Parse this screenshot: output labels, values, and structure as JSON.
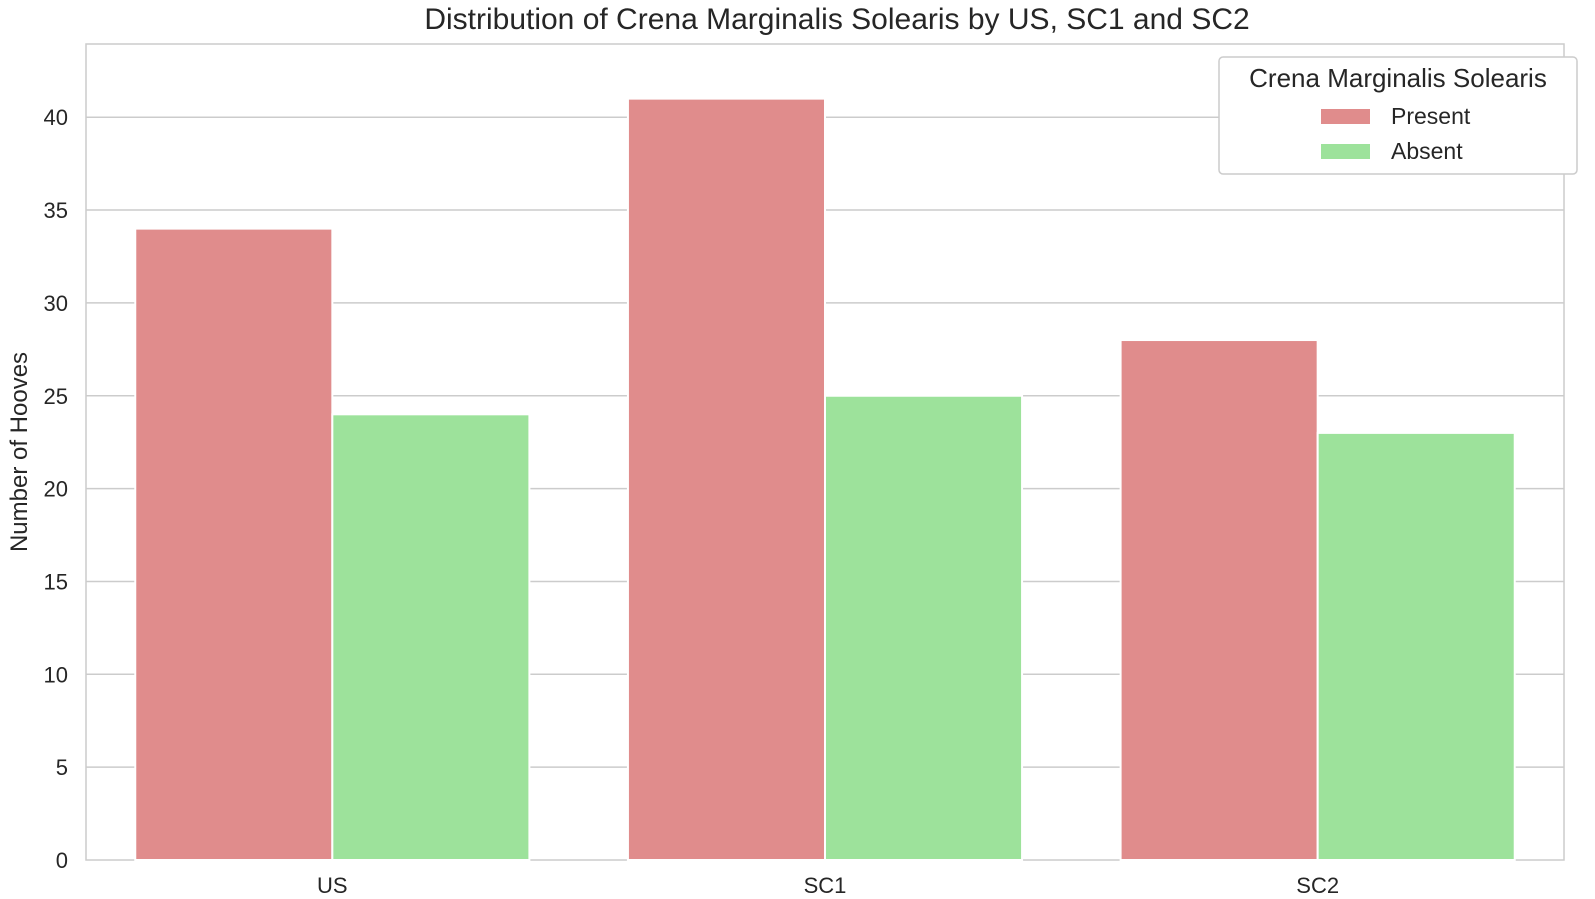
{
  "chart_data": {
    "type": "bar",
    "title": "Distribution of Crena Marginalis Solearis by US, SC1 and SC2",
    "xlabel": "",
    "ylabel": "Number of Hooves",
    "categories": [
      "US",
      "SC1",
      "SC2"
    ],
    "series": [
      {
        "name": "Present",
        "values": [
          34,
          41,
          28
        ],
        "color": "#e08c8c"
      },
      {
        "name": "Absent",
        "values": [
          24,
          25,
          23
        ],
        "color": "#9de29b"
      }
    ],
    "ylim": [
      0,
      43
    ],
    "yticks": [
      0,
      5,
      10,
      15,
      20,
      25,
      30,
      35,
      40
    ],
    "grid": true,
    "legend": {
      "title": "Crena Marginalis Solearis",
      "placement": "top-right"
    }
  }
}
